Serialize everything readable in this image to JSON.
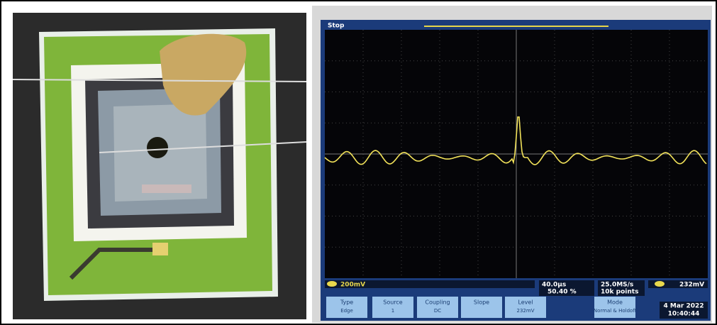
{
  "scope": {
    "status": "Stop",
    "channel_scale": "200mV",
    "timebase": "40.0µs",
    "trigger_position": "50.40 %",
    "sample_rate": "25.0MS/s",
    "record_length": "10k points",
    "trigger_level": "232mV",
    "menu": [
      {
        "label": "Type",
        "value": "Edge"
      },
      {
        "label": "Source",
        "value": "1"
      },
      {
        "label": "Coupling",
        "value": "DC"
      },
      {
        "label": "Slope"
      },
      {
        "label": "Level",
        "value": "232mV"
      },
      {
        "label": "Mode",
        "value": "Normal & Holdoff"
      }
    ],
    "date": "4 Mar 2022",
    "time": "10:40:44"
  }
}
